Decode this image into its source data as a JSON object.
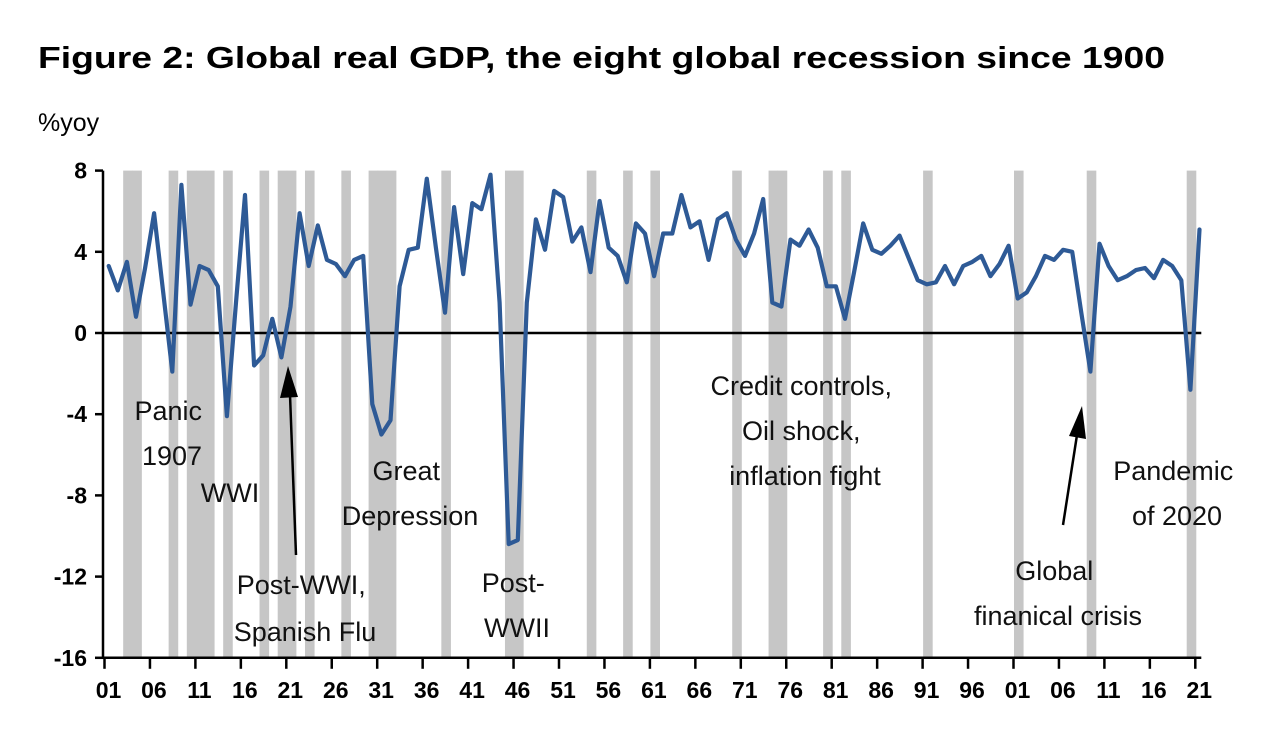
{
  "chart_data": {
    "type": "line",
    "title": "Figure 2: Global real GDP, the eight global recession since 1900",
    "ylabel": "%yoy",
    "xlabel": "",
    "ylim": [
      -16,
      8
    ],
    "xlim": [
      1901,
      2021
    ],
    "yticks": [
      "8",
      "4",
      "0",
      "-4",
      "-8",
      "-12",
      "-16"
    ],
    "ytick_values": [
      8,
      4,
      0,
      -4,
      -8,
      -12,
      -16
    ],
    "xtick_labels": [
      "01",
      "06",
      "11",
      "16",
      "21",
      "26",
      "31",
      "36",
      "41",
      "46",
      "51",
      "56",
      "61",
      "66",
      "71",
      "76",
      "81",
      "86",
      "91",
      "96",
      "01",
      "06",
      "11",
      "16",
      "21"
    ],
    "xtick_years": [
      1901,
      1906,
      1911,
      1916,
      1921,
      1926,
      1931,
      1936,
      1941,
      1946,
      1951,
      1956,
      1961,
      1966,
      1971,
      1976,
      1981,
      1986,
      1991,
      1996,
      2001,
      2006,
      2011,
      2016,
      2021
    ],
    "grid": false,
    "line_color": "#2E5A96",
    "recession_color": "#C6C6C6",
    "x": [
      1901,
      1902,
      1903,
      1904,
      1905,
      1906,
      1907,
      1908,
      1909,
      1910,
      1911,
      1912,
      1913,
      1914,
      1915,
      1916,
      1917,
      1918,
      1919,
      1920,
      1921,
      1922,
      1923,
      1924,
      1925,
      1926,
      1927,
      1928,
      1929,
      1930,
      1931,
      1932,
      1933,
      1934,
      1935,
      1936,
      1937,
      1938,
      1939,
      1940,
      1941,
      1942,
      1943,
      1944,
      1945,
      1946,
      1947,
      1948,
      1949,
      1950,
      1951,
      1952,
      1953,
      1954,
      1955,
      1956,
      1957,
      1958,
      1959,
      1960,
      1961,
      1962,
      1963,
      1964,
      1965,
      1966,
      1967,
      1968,
      1969,
      1970,
      1971,
      1972,
      1973,
      1974,
      1975,
      1976,
      1977,
      1978,
      1979,
      1980,
      1981,
      1982,
      1983,
      1984,
      1985,
      1986,
      1987,
      1988,
      1989,
      1990,
      1991,
      1992,
      1993,
      1994,
      1995,
      1996,
      1997,
      1998,
      1999,
      2000,
      2001,
      2002,
      2003,
      2004,
      2005,
      2006,
      2007,
      2008,
      2009,
      2010,
      2011,
      2012,
      2013,
      2014,
      2015,
      2016,
      2017,
      2018,
      2019,
      2020,
      2021
    ],
    "values": [
      3.3,
      2.1,
      3.5,
      0.8,
      3.2,
      5.9,
      2.0,
      -1.9,
      7.3,
      1.4,
      3.3,
      3.1,
      2.3,
      -4.1,
      1.5,
      6.8,
      -1.6,
      -1.1,
      0.7,
      -1.2,
      1.3,
      5.9,
      3.3,
      5.3,
      3.6,
      3.4,
      2.8,
      3.6,
      3.8,
      -3.5,
      -5.0,
      -4.3,
      2.3,
      4.1,
      4.2,
      7.6,
      4.2,
      1.0,
      6.2,
      2.9,
      6.4,
      6.1,
      7.8,
      1.5,
      -10.4,
      -10.2,
      1.5,
      5.6,
      4.1,
      7.0,
      6.7,
      4.5,
      5.2,
      3.0,
      6.5,
      4.2,
      3.8,
      2.5,
      5.4,
      4.9,
      2.8,
      4.9,
      4.9,
      6.8,
      5.2,
      5.5,
      3.6,
      5.6,
      5.9,
      4.6,
      3.8,
      4.9,
      6.6,
      1.5,
      1.3,
      4.6,
      4.3,
      5.1,
      4.2,
      2.3,
      2.3,
      0.7,
      3.0,
      5.4,
      4.1,
      3.9,
      4.3,
      4.8,
      3.7,
      2.6,
      2.4,
      2.5,
      3.3,
      2.4,
      3.3,
      3.5,
      3.8,
      2.8,
      3.4,
      4.3,
      1.7,
      2.0,
      2.8,
      3.8,
      3.6,
      4.1,
      4.0,
      1.0,
      -1.9,
      4.4,
      3.3,
      2.6,
      2.8,
      3.1,
      3.2,
      2.7,
      3.6,
      3.3,
      2.6,
      -2.8,
      5.1
    ],
    "recession_years": [
      1903,
      1904,
      1908,
      1910,
      1911,
      1912,
      1914,
      1918,
      1920,
      1921,
      1923,
      1927,
      1930,
      1931,
      1932,
      1938,
      1945,
      1946,
      1954,
      1958,
      1961,
      1970,
      1974,
      1975,
      1980,
      1982,
      1991,
      2001,
      2009,
      2020
    ],
    "annotations": {
      "panic": [
        "Panic",
        "1907"
      ],
      "wwi": [
        "WWI"
      ],
      "post_wwi": [
        "Post-WWI,",
        "Spanish Flu"
      ],
      "great_depression": [
        "Great",
        "Depression"
      ],
      "post_wwii": [
        "Post-",
        "WWII"
      ],
      "credit": [
        "Credit controls,",
        "Oil shock,",
        "inflation fight"
      ],
      "gfc": [
        "Global",
        "finanical crisis"
      ],
      "pandemic": [
        "Pandemic",
        "of 2020"
      ]
    }
  }
}
